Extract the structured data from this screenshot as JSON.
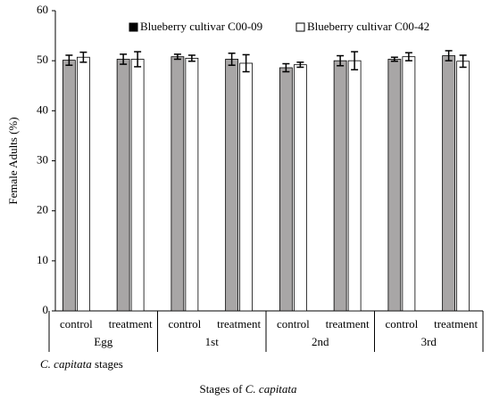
{
  "chart_data": {
    "type": "bar",
    "ylabel": "Female Adults (%)",
    "xlabel": [
      {
        "text": "Stages of "
      },
      {
        "text": "C. capitata",
        "italic": true
      }
    ],
    "group_label": [
      {
        "text": "C. capitata",
        "italic": true
      },
      {
        "text": " stages"
      }
    ],
    "groups": [
      "Egg",
      "1st",
      "2nd",
      "3rd"
    ],
    "categories": [
      "control",
      "treatment",
      "control",
      "treatment",
      "control",
      "treatment",
      "control",
      "treatment"
    ],
    "series": [
      {
        "name": "Blueberry cultivar C00-09",
        "color": "#a8a6a6",
        "values": [
          50.1,
          50.3,
          50.8,
          50.3,
          48.6,
          50.0,
          50.3,
          51.0
        ],
        "errors": [
          1.0,
          1.0,
          0.5,
          1.2,
          0.8,
          1.0,
          0.4,
          1.0
        ]
      },
      {
        "name": "Blueberry cultivar C00-42",
        "color": "#ffffff",
        "values": [
          50.7,
          50.3,
          50.5,
          49.5,
          49.2,
          50.0,
          50.8,
          49.9
        ],
        "errors": [
          1.0,
          1.5,
          0.6,
          1.7,
          0.5,
          1.8,
          0.8,
          1.2
        ]
      }
    ],
    "ylim": [
      0,
      60
    ],
    "yticks": [
      0,
      10,
      20,
      30,
      40,
      50,
      60
    ],
    "legend": "top"
  }
}
